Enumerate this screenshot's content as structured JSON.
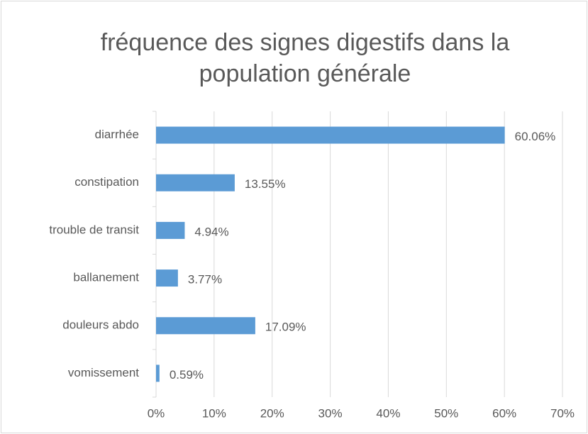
{
  "chart_data": {
    "type": "bar",
    "orientation": "horizontal",
    "title": "fréquence des signes digestifs dans la population générale",
    "categories": [
      "diarrhée",
      "constipation",
      "trouble de transit",
      "ballanement",
      "douleurs abdo",
      "vomissement"
    ],
    "values": [
      60.06,
      13.55,
      4.94,
      3.77,
      17.09,
      0.59
    ],
    "value_labels": [
      "60.06%",
      "13.55%",
      "4.94%",
      "3.77%",
      "17.09%",
      "0.59%"
    ],
    "color": "#5b9bd5",
    "xlim": [
      0,
      70
    ],
    "xticks": [
      {
        "value": 0,
        "label": "0%"
      },
      {
        "value": 10,
        "label": "10%"
      },
      {
        "value": 20,
        "label": "20%"
      },
      {
        "value": 30,
        "label": "30%"
      },
      {
        "value": 40,
        "label": "40%"
      },
      {
        "value": 50,
        "label": "50%"
      },
      {
        "value": 60,
        "label": "60%"
      },
      {
        "value": 70,
        "label": "70%"
      }
    ],
    "grid": true
  }
}
